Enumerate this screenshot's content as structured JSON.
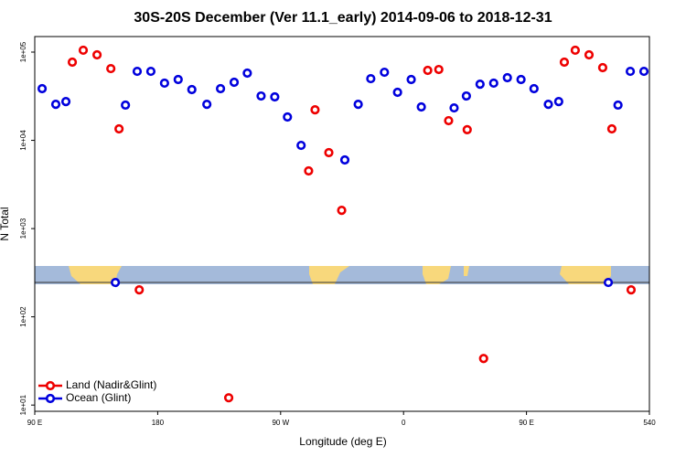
{
  "chart_data": {
    "type": "scatter",
    "title": "30S-20S December (Ver 11.1_early)   2014-09-06 to 2018-12-31",
    "x_label": "Longitude (deg E)",
    "y_label": "N Total",
    "xlim": [
      90,
      540
    ],
    "ylim": [
      8.5,
      150000
    ],
    "ylog": true,
    "legend": "bottom-left",
    "xticks": [
      {
        "value": 90,
        "label": "90 E"
      },
      180,
      {
        "value": 270,
        "label": "90 W"
      },
      {
        "value": 360,
        "label": "0"
      },
      {
        "value": 450,
        "label": "90 E"
      },
      540
    ],
    "yticks": [
      {
        "value": 10,
        "label": "1e+01"
      },
      {
        "value": 100,
        "label": "1e+02"
      },
      {
        "value": 1000,
        "label": "1e+03"
      },
      {
        "value": 10000,
        "label": "1e+04"
      },
      {
        "value": 100000,
        "label": "1e+05"
      }
    ],
    "series": [
      {
        "name": "Land (Nadir&Glint)",
        "color": "#ee0000",
        "x": [
          117.5,
          125.5,
          135.6,
          145.7,
          151.7,
          166.5,
          232,
          290.5,
          295.2,
          305.3,
          314.7,
          377.7,
          385.8,
          393,
          406.6,
          418.6,
          477.7,
          485.7,
          495.8,
          505.8,
          512.5,
          526.6
        ],
        "values": [
          76900,
          105000,
          93100,
          65000,
          13500,
          202,
          12.1,
          4500,
          22200,
          7250,
          1610,
          62100,
          63500,
          16700,
          13200,
          33.7,
          76900,
          105000,
          93100,
          66700,
          13500,
          202
        ]
      },
      {
        "name": "Ocean (Glint)",
        "color": "#0000dd",
        "x": [
          95.4,
          105.4,
          112.8,
          149,
          156.4,
          165,
          175,
          185,
          195,
          205,
          216,
          226,
          236,
          245.6,
          255.7,
          265.7,
          275,
          285,
          317,
          326.8,
          336,
          346,
          355.6,
          365.6,
          373,
          397,
          406,
          416,
          426,
          436,
          446,
          455.5,
          466,
          473.6,
          509.9,
          517,
          526,
          536
        ],
        "values": [
          38500,
          25600,
          27500,
          245,
          25100,
          60500,
          60500,
          44500,
          48900,
          37600,
          25600,
          38500,
          45500,
          57800,
          31800,
          31100,
          18400,
          8770,
          5990,
          25600,
          50000,
          59100,
          35000,
          48900,
          23900,
          23300,
          31800,
          43300,
          44500,
          51300,
          48900,
          38500,
          25600,
          27500,
          245,
          25100,
          60500,
          60500
        ]
      }
    ]
  }
}
